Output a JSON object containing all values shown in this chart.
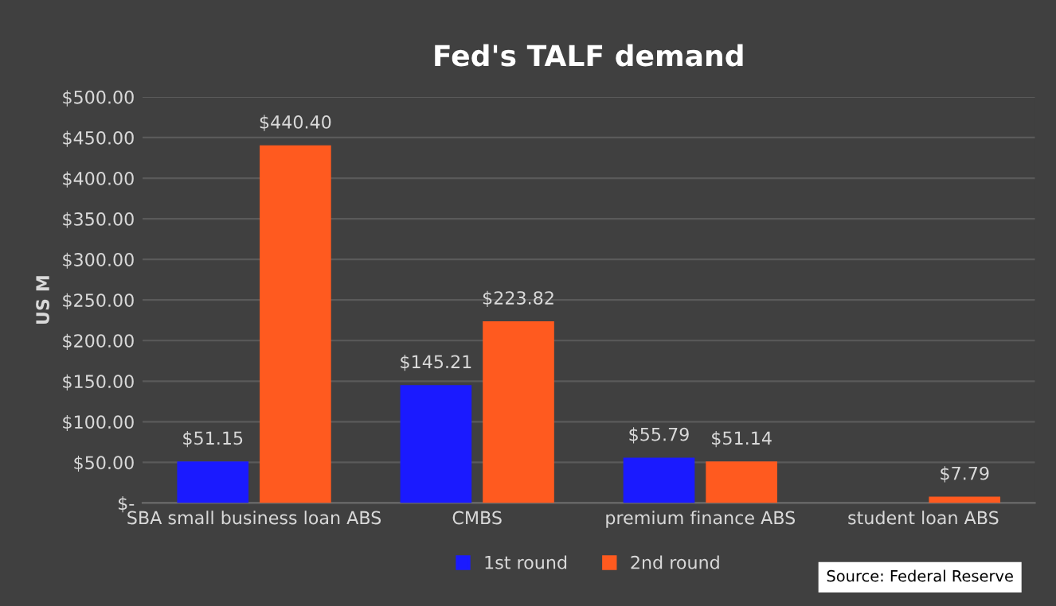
{
  "chart_data": {
    "type": "bar",
    "title": "Fed's TALF demand",
    "ylabel": "US M",
    "categories": [
      "SBA small business loan ABS",
      "CMBS",
      "premium finance ABS",
      "student loan ABS"
    ],
    "series": [
      {
        "name": "1st round",
        "color": "#1a1aff",
        "values": [
          51.15,
          145.21,
          55.79,
          null
        ],
        "value_labels": [
          "$51.15",
          "$145.21",
          "$55.79",
          null
        ]
      },
      {
        "name": "2nd round",
        "color": "#ff5a1f",
        "values": [
          440.4,
          223.82,
          51.14,
          7.79
        ],
        "value_labels": [
          "$440.40",
          "$223.82",
          "$51.14",
          "$7.79"
        ]
      }
    ],
    "ylim": [
      0,
      500
    ],
    "yticks": [
      {
        "value": 0,
        "label": "$-"
      },
      {
        "value": 50,
        "label": "$50.00"
      },
      {
        "value": 100,
        "label": "$100.00"
      },
      {
        "value": 150,
        "label": "$150.00"
      },
      {
        "value": 200,
        "label": "$200.00"
      },
      {
        "value": 250,
        "label": "$250.00"
      },
      {
        "value": 300,
        "label": "$300.00"
      },
      {
        "value": 350,
        "label": "$350.00"
      },
      {
        "value": 400,
        "label": "$400.00"
      },
      {
        "value": 450,
        "label": "$450.00"
      },
      {
        "value": 500,
        "label": "$500.00"
      }
    ],
    "grid": "y",
    "legend": "bottom",
    "annotations": [
      "Source: Federal Reserve"
    ]
  }
}
